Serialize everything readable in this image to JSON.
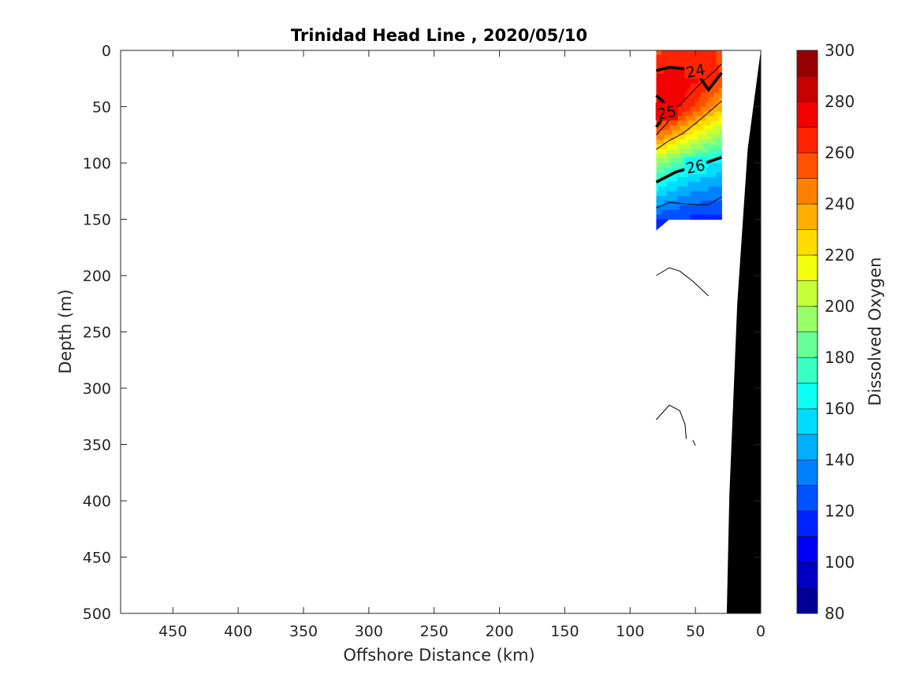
{
  "chart_data": {
    "type": "heatmap",
    "title": "Trinidad Head Line , 2020/05/10",
    "xlabel": "Offshore Distance (km)",
    "ylabel": "Depth (m)",
    "xlim": [
      490,
      0
    ],
    "ylim": [
      500,
      0
    ],
    "x_ticks": [
      450,
      400,
      350,
      300,
      250,
      200,
      150,
      100,
      50,
      0
    ],
    "x_tick_labels": [
      "450",
      "400",
      "350",
      "300",
      "250",
      "200",
      "150",
      "100",
      "50",
      "0"
    ],
    "y_ticks": [
      0,
      50,
      100,
      150,
      200,
      250,
      300,
      350,
      400,
      450,
      500
    ],
    "y_tick_labels": [
      "0",
      "50",
      "100",
      "150",
      "200",
      "250",
      "300",
      "350",
      "400",
      "450",
      "500"
    ],
    "grid": false,
    "colorbar": {
      "label": "Dissolved Oxygen",
      "min": 80,
      "max": 300,
      "step": 10,
      "ticks": [
        80,
        100,
        120,
        140,
        160,
        180,
        200,
        220,
        240,
        260,
        280,
        300
      ],
      "tick_labels": [
        "80",
        "100",
        "120",
        "140",
        "160",
        "180",
        "200",
        "220",
        "240",
        "260",
        "280",
        "300"
      ],
      "colormap": "jet"
    },
    "data_region": {
      "x_range": [
        80,
        30
      ],
      "depth_range": [
        0,
        150
      ],
      "grid_x": [
        80,
        70,
        60,
        50,
        40,
        30
      ],
      "grid_depth": [
        0,
        25,
        50,
        75,
        100,
        125,
        150
      ],
      "values": [
        [
          258,
          260,
          262,
          262,
          262,
          258
        ],
        [
          272,
          275,
          274,
          272,
          268,
          258
        ],
        [
          282,
          278,
          270,
          258,
          245,
          232
        ],
        [
          250,
          240,
          228,
          215,
          205,
          195
        ],
        [
          195,
          185,
          175,
          168,
          162,
          158
        ],
        [
          160,
          150,
          145,
          140,
          138,
          135
        ],
        [
          122,
          120,
          118,
          118,
          115,
          115
        ]
      ]
    },
    "density_contours": {
      "labeled": [
        {
          "label": "26",
          "points": [
            [
              80,
              117
            ],
            [
              65,
              108
            ],
            [
              50,
              103
            ],
            [
              35,
              97
            ],
            [
              30,
              95
            ]
          ]
        },
        {
          "label": "25",
          "points": [
            [
              80,
              40
            ],
            [
              75,
              45
            ],
            [
              72,
              55
            ],
            [
              78,
              65
            ],
            [
              80,
              68
            ]
          ]
        },
        {
          "label": "24",
          "points": [
            [
              80,
              18
            ],
            [
              70,
              15
            ],
            [
              60,
              16
            ],
            [
              50,
              18
            ],
            [
              40,
              35
            ],
            [
              30,
              20
            ]
          ]
        }
      ],
      "thin": [
        [
          [
            80,
            140
          ],
          [
            70,
            135
          ],
          [
            60,
            136
          ],
          [
            50,
            137
          ],
          [
            40,
            137
          ],
          [
            30,
            130
          ]
        ],
        [
          [
            80,
            88
          ],
          [
            70,
            80
          ],
          [
            60,
            74
          ],
          [
            50,
            65
          ],
          [
            40,
            55
          ],
          [
            30,
            45
          ]
        ],
        [
          [
            80,
            75
          ],
          [
            72,
            65
          ],
          [
            65,
            52
          ],
          [
            55,
            40
          ],
          [
            45,
            28
          ],
          [
            35,
            18
          ],
          [
            30,
            12
          ]
        ],
        [
          [
            80,
            200
          ],
          [
            70,
            193
          ],
          [
            62,
            196
          ],
          [
            52,
            205
          ],
          [
            40,
            218
          ]
        ],
        [
          [
            80,
            328
          ],
          [
            70,
            315
          ],
          [
            62,
            320
          ],
          [
            58,
            332
          ],
          [
            57,
            345
          ]
        ],
        [
          [
            52,
            346
          ],
          [
            50,
            351
          ]
        ]
      ]
    },
    "bathymetry": {
      "color": "#000000",
      "points": [
        [
          0,
          0
        ],
        [
          10,
          88
        ],
        [
          18,
          225
        ],
        [
          24,
          395
        ],
        [
          26,
          500
        ],
        [
          0,
          500
        ]
      ]
    }
  }
}
